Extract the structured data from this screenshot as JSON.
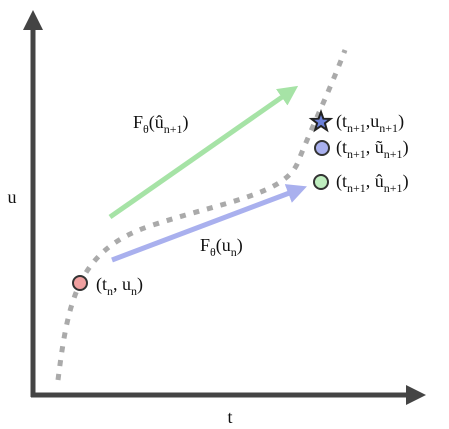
{
  "axes": {
    "x_label": "t",
    "y_label": "u"
  },
  "arrows": [
    {
      "label": [
        "F",
        "θ",
        "(û",
        "n+1",
        ")"
      ]
    },
    {
      "label": [
        "F",
        "θ",
        "(u",
        "n",
        ")"
      ]
    }
  ],
  "points": [
    {
      "label": [
        "(t",
        "n",
        ", u",
        "n",
        ")"
      ]
    },
    {
      "label": [
        "(t",
        "n+1",
        ",u",
        "n+1",
        ")"
      ]
    },
    {
      "label": [
        "(t",
        "n+1",
        ", ũ",
        "n+1",
        ")"
      ]
    },
    {
      "label": [
        "(t",
        "n+1",
        ", û",
        "n+1",
        ")"
      ]
    }
  ]
}
